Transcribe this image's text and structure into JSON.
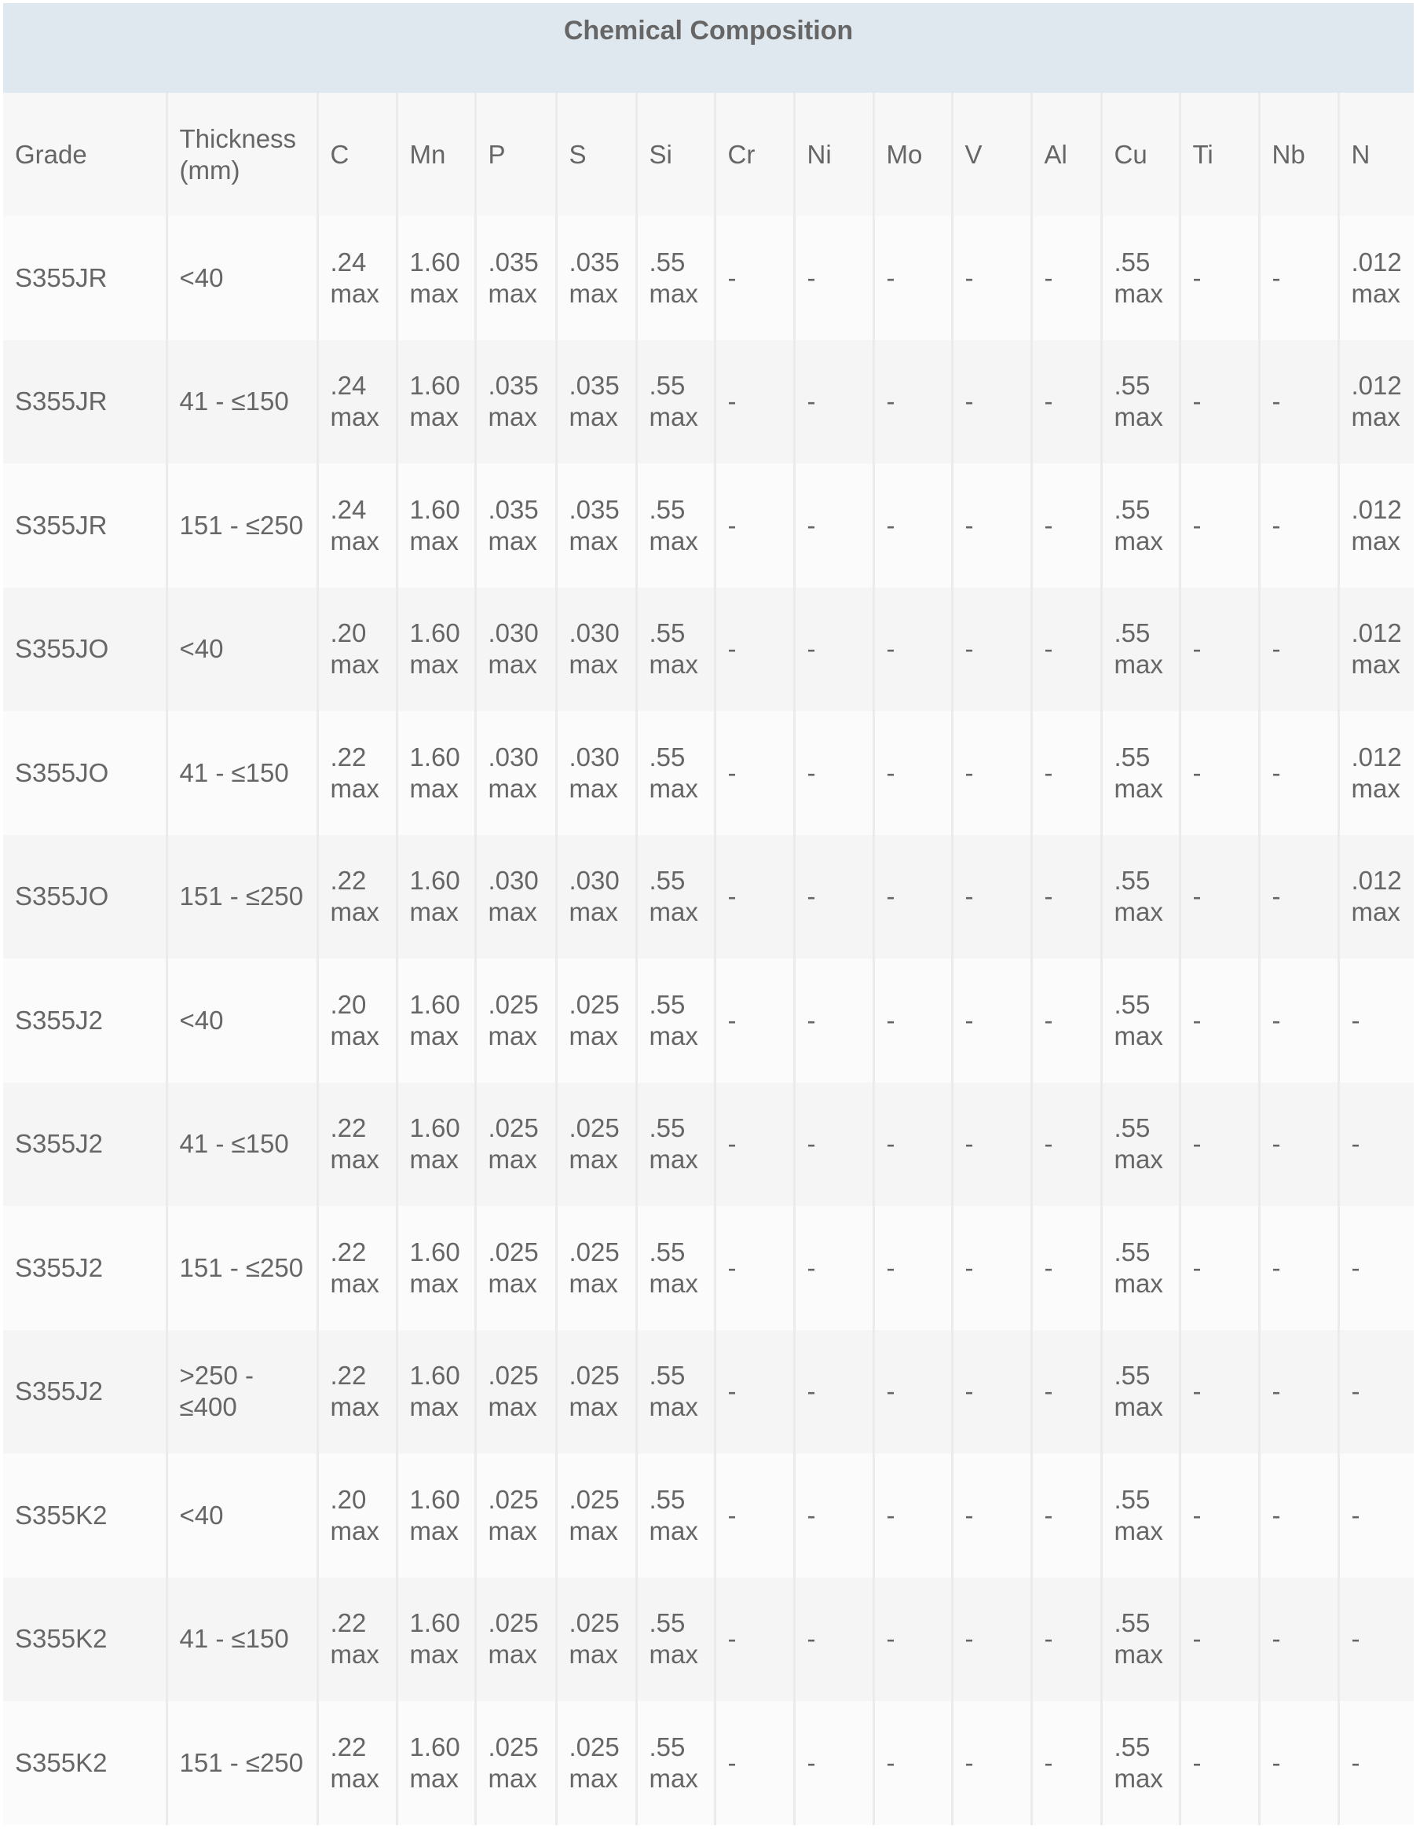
{
  "title": "Chemical Composition",
  "columns": [
    "Grade",
    "Thickness (mm)",
    "C",
    "Mn",
    "P",
    "S",
    "Si",
    "Cr",
    "Ni",
    "Mo",
    "V",
    "Al",
    "Cu",
    "Ti",
    "Nb",
    "N"
  ],
  "rows": [
    [
      "S355JR",
      "<40",
      ".24 max",
      "1.60 max",
      ".035 max",
      ".035 max",
      ".55 max",
      "-",
      "-",
      "-",
      "-",
      "-",
      ".55 max",
      "-",
      "-",
      ".012 max"
    ],
    [
      "S355JR",
      "41 - ≤150",
      ".24 max",
      "1.60 max",
      ".035 max",
      ".035 max",
      ".55 max",
      "-",
      "-",
      "-",
      "-",
      "-",
      ".55 max",
      "-",
      "-",
      ".012 max"
    ],
    [
      "S355JR",
      "151 - ≤250",
      ".24 max",
      "1.60 max",
      ".035 max",
      ".035 max",
      ".55 max",
      "-",
      "-",
      "-",
      "-",
      "-",
      ".55 max",
      "-",
      "-",
      ".012 max"
    ],
    [
      "S355JO",
      "<40",
      ".20 max",
      "1.60 max",
      ".030 max",
      ".030 max",
      ".55 max",
      "-",
      "-",
      "-",
      "-",
      "-",
      ".55 max",
      "-",
      "-",
      ".012 max"
    ],
    [
      "S355JO",
      "41 - ≤150",
      ".22 max",
      "1.60 max",
      ".030 max",
      ".030 max",
      ".55 max",
      "-",
      "-",
      "-",
      "-",
      "-",
      ".55 max",
      "-",
      "-",
      ".012 max"
    ],
    [
      "S355JO",
      "151 - ≤250",
      ".22 max",
      "1.60 max",
      ".030 max",
      ".030 max",
      ".55 max",
      "-",
      "-",
      "-",
      "-",
      "-",
      ".55 max",
      "-",
      "-",
      ".012 max"
    ],
    [
      "S355J2",
      "<40",
      ".20 max",
      "1.60 max",
      ".025 max",
      ".025 max",
      ".55 max",
      "-",
      "-",
      "-",
      "-",
      "-",
      ".55 max",
      "-",
      "-",
      "-"
    ],
    [
      "S355J2",
      "41 - ≤150",
      ".22 max",
      "1.60 max",
      ".025 max",
      ".025 max",
      ".55 max",
      "-",
      "-",
      "-",
      "-",
      "-",
      ".55 max",
      "-",
      "-",
      "-"
    ],
    [
      "S355J2",
      "151 - ≤250",
      ".22 max",
      "1.60 max",
      ".025 max",
      ".025 max",
      ".55 max",
      "-",
      "-",
      "-",
      "-",
      "-",
      ".55 max",
      "-",
      "-",
      "-"
    ],
    [
      "S355J2",
      ">250 - ≤400",
      ".22 max",
      "1.60 max",
      ".025 max",
      ".025 max",
      ".55 max",
      "-",
      "-",
      "-",
      "-",
      "-",
      ".55 max",
      "-",
      "-",
      "-"
    ],
    [
      "S355K2",
      "<40",
      ".20 max",
      "1.60 max",
      ".025 max",
      ".025 max",
      ".55 max",
      "-",
      "-",
      "-",
      "-",
      "-",
      ".55 max",
      "-",
      "-",
      "-"
    ],
    [
      "S355K2",
      "41 - ≤150",
      ".22 max",
      "1.60 max",
      ".025 max",
      ".025 max",
      ".55 max",
      "-",
      "-",
      "-",
      "-",
      "-",
      ".55 max",
      "-",
      "-",
      "-"
    ],
    [
      "S355K2",
      "151 - ≤250",
      ".22 max",
      "1.60 max",
      ".025 max",
      ".025 max",
      ".55 max",
      "-",
      "-",
      "-",
      "-",
      "-",
      ".55 max",
      "-",
      "-",
      "-"
    ]
  ]
}
